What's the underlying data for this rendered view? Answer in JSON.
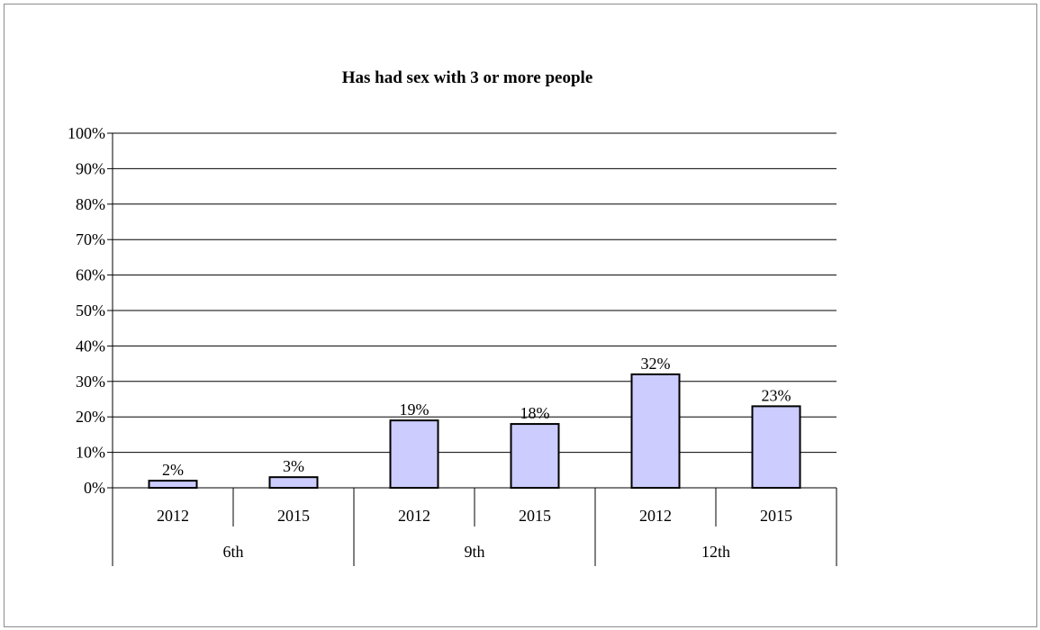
{
  "chart_data": {
    "type": "bar",
    "title": "Has had sex with 3 or more people",
    "xlabel": "",
    "ylabel": "",
    "groups": [
      {
        "label": "6th",
        "categories": [
          "2012",
          "2015"
        ],
        "values": [
          2,
          3
        ],
        "labels": [
          "2%",
          "3%"
        ]
      },
      {
        "label": "9th",
        "categories": [
          "2012",
          "2015"
        ],
        "values": [
          19,
          18
        ],
        "labels": [
          "19%",
          "18%"
        ]
      },
      {
        "label": "12th",
        "categories": [
          "2012",
          "2015"
        ],
        "values": [
          32,
          23
        ],
        "labels": [
          "32%",
          "23%"
        ]
      }
    ],
    "ylim": [
      0,
      100
    ],
    "yticks": [
      "0%",
      "10%",
      "20%",
      "30%",
      "40%",
      "50%",
      "60%",
      "70%",
      "80%",
      "90%",
      "100%"
    ],
    "grid": true,
    "legend": "none",
    "colors": {
      "bar_fill": "#ccccff",
      "bar_stroke": "#000000",
      "grid": "#000000"
    }
  }
}
